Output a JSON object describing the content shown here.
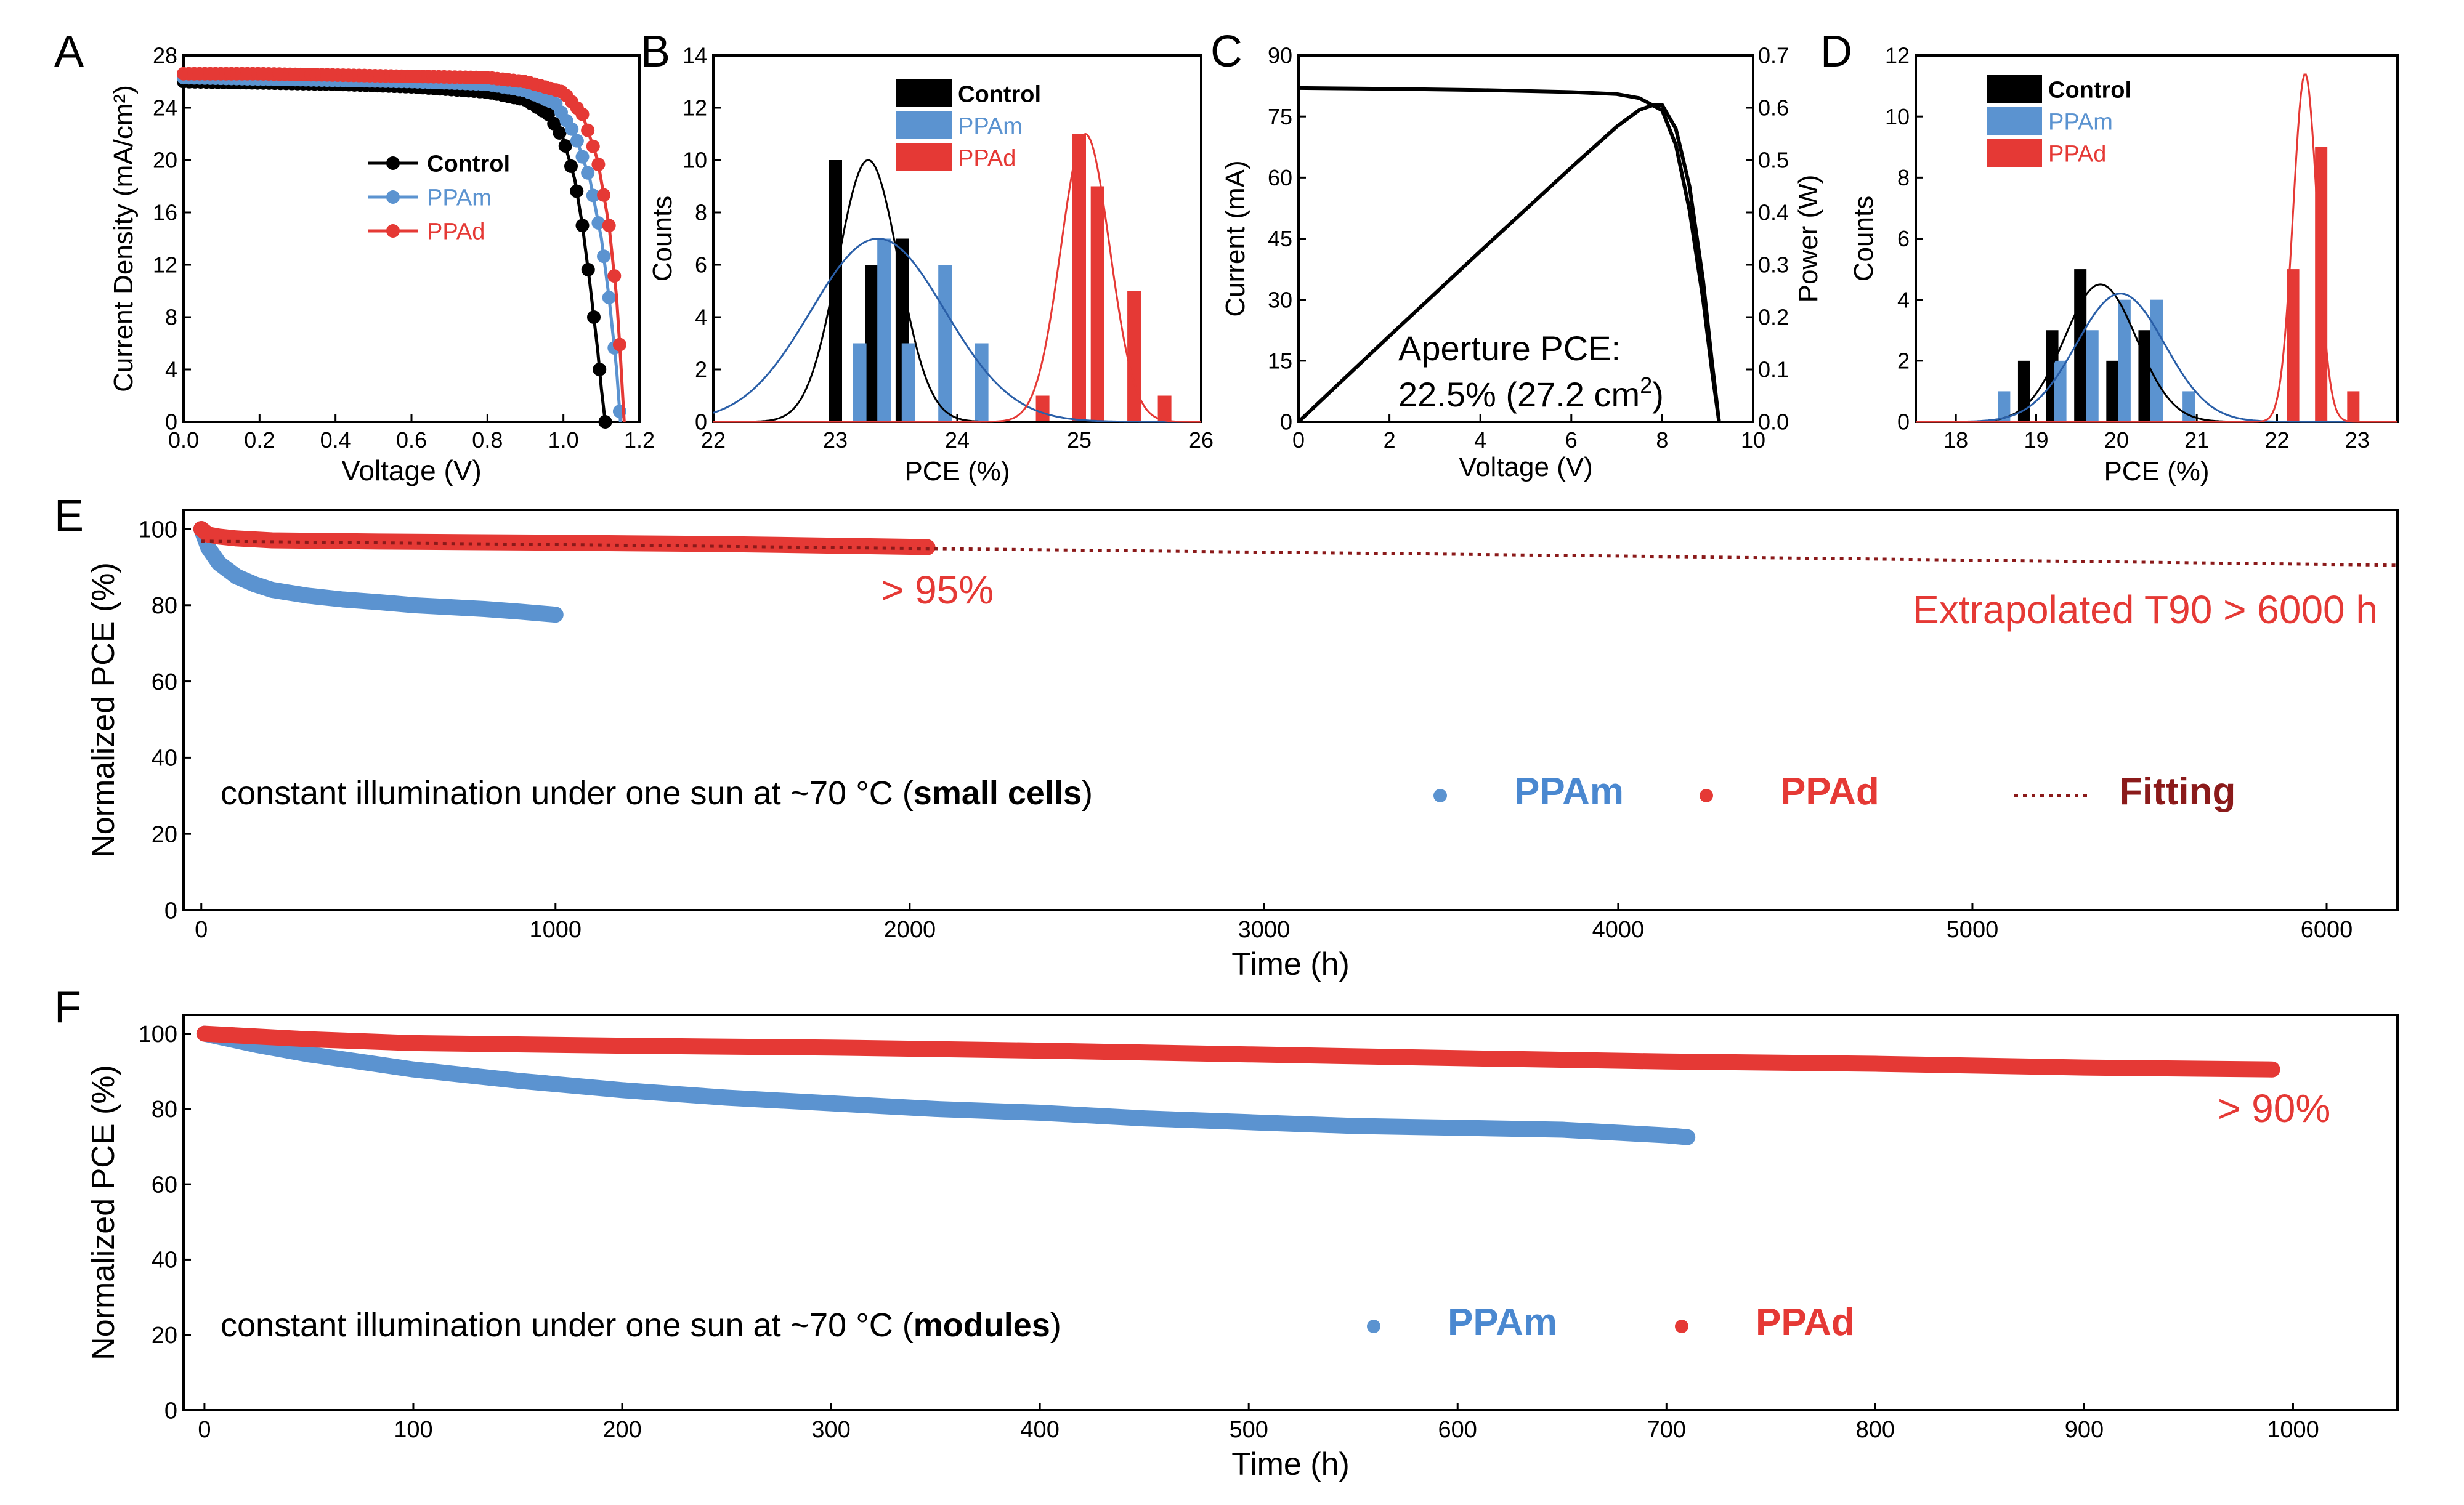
{
  "panel_letters": {
    "a": "A",
    "b": "B",
    "c": "C",
    "d": "D",
    "e": "E",
    "f": "F"
  },
  "colors": {
    "control": "#000000",
    "ppam": "#5b93d0",
    "ppad": "#e53935",
    "fitting": "#8b1a1a",
    "ppam_text": "#4a88d0",
    "ppad_text": "#e53935"
  },
  "chart_data": [
    {
      "id": "A",
      "type": "line",
      "xlabel": "Voltage (V)",
      "ylabel": "Current Density (mA/cm²)",
      "xlim": [
        0.0,
        1.2
      ],
      "ylim": [
        0,
        28
      ],
      "xticks": [
        "0.0",
        "0.2",
        "0.4",
        "0.6",
        "0.8",
        "1.0",
        "1.2"
      ],
      "yticks": [
        "0",
        "4",
        "8",
        "12",
        "16",
        "20",
        "24",
        "28"
      ],
      "legend": [
        "Control",
        "PPAm",
        "PPAd"
      ],
      "series": [
        {
          "name": "Control",
          "jsc": 26.0,
          "voc": 1.11,
          "x": [
            0,
            0.2,
            0.4,
            0.6,
            0.8,
            0.9,
            0.96,
            1.0,
            1.03,
            1.05,
            1.07,
            1.09,
            1.1,
            1.11
          ],
          "y": [
            26.0,
            25.9,
            25.8,
            25.6,
            25.2,
            24.6,
            23.5,
            21.6,
            18.5,
            15,
            10.5,
            5.5,
            2.5,
            0
          ]
        },
        {
          "name": "PPAm",
          "jsc": 26.3,
          "voc": 1.15,
          "x": [
            0,
            0.2,
            0.4,
            0.6,
            0.8,
            0.9,
            0.98,
            1.03,
            1.07,
            1.1,
            1.12,
            1.14,
            1.15
          ],
          "y": [
            26.3,
            26.2,
            26.1,
            26.0,
            25.8,
            25.3,
            24.3,
            22.0,
            18.5,
            14,
            9.5,
            4,
            0
          ]
        },
        {
          "name": "PPAd",
          "jsc": 26.6,
          "voc": 1.16,
          "x": [
            0,
            0.2,
            0.4,
            0.6,
            0.8,
            0.9,
            1.0,
            1.05,
            1.09,
            1.12,
            1.14,
            1.15,
            1.16
          ],
          "y": [
            26.6,
            26.6,
            26.5,
            26.4,
            26.3,
            26.0,
            25.2,
            23.5,
            20.0,
            15.0,
            9.5,
            5.0,
            0
          ]
        }
      ]
    },
    {
      "id": "B",
      "type": "bar",
      "xlabel": "PCE (%)",
      "ylabel": "Counts",
      "xlim": [
        22,
        26
      ],
      "ylim": [
        0,
        14
      ],
      "xticks": [
        "22",
        "23",
        "24",
        "25",
        "26"
      ],
      "yticks": [
        "0",
        "2",
        "4",
        "6",
        "8",
        "10",
        "12",
        "14"
      ],
      "legend": [
        "Control",
        "PPAm",
        "PPAd"
      ],
      "series": [
        {
          "name": "Control",
          "x": [
            23.0,
            23.3,
            23.55
          ],
          "values": [
            10,
            6,
            7
          ]
        },
        {
          "name": "PPAm",
          "x": [
            23.2,
            23.4,
            23.6,
            23.9,
            24.2
          ],
          "values": [
            3,
            7,
            3,
            6,
            3
          ]
        },
        {
          "name": "PPAd",
          "x": [
            24.7,
            25.0,
            25.15,
            25.45,
            25.7
          ],
          "values": [
            1,
            11,
            9,
            5,
            1
          ]
        }
      ],
      "fits": [
        {
          "name": "Control",
          "mean": 23.27,
          "sd": 0.25,
          "peak": 10
        },
        {
          "name": "PPAm",
          "mean": 23.35,
          "sd": 0.55,
          "peak": 7
        },
        {
          "name": "PPAd",
          "mean": 25.05,
          "sd": 0.2,
          "peak": 11
        }
      ]
    },
    {
      "id": "C",
      "type": "line",
      "xlabel": "Voltage (V)",
      "ylabel": "Current (mA)",
      "y2label": "Power (W)",
      "xlim": [
        0,
        10
      ],
      "ylim": [
        0,
        90
      ],
      "y2lim": [
        0,
        0.7
      ],
      "xticks": [
        "0",
        "2",
        "4",
        "6",
        "8",
        "10"
      ],
      "yticks": [
        "0",
        "15",
        "30",
        "45",
        "60",
        "75",
        "90"
      ],
      "y2ticks": [
        "0.0",
        "0.1",
        "0.2",
        "0.3",
        "0.4",
        "0.5",
        "0.6",
        "0.7"
      ],
      "annotation_line1": "Aperture PCE:",
      "annotation_line2_value": "22.5% (27.2 cm",
      "annotation_sup": "2",
      "annotation_close": ")",
      "series": [
        {
          "name": "Current",
          "x": [
            0,
            2,
            4,
            6,
            7,
            7.5,
            8,
            8.3,
            8.6,
            8.9,
            9.1,
            9.25
          ],
          "y": [
            82,
            81.8,
            81.5,
            81,
            80.5,
            79.5,
            76.5,
            68,
            52,
            30,
            12,
            0
          ]
        },
        {
          "name": "Power",
          "x": [
            0,
            2,
            4,
            6,
            7,
            7.5,
            7.8,
            8.0,
            8.3,
            8.6,
            8.9,
            9.1,
            9.25
          ],
          "y": [
            0,
            0.164,
            0.326,
            0.486,
            0.564,
            0.596,
            0.605,
            0.605,
            0.56,
            0.45,
            0.27,
            0.11,
            0
          ]
        }
      ]
    },
    {
      "id": "D",
      "type": "bar",
      "xlabel": "PCE (%)",
      "ylabel": "Counts",
      "xlim": [
        17.5,
        23.5
      ],
      "ylim": [
        0,
        12
      ],
      "xticks": [
        "18",
        "19",
        "20",
        "21",
        "22",
        "23"
      ],
      "yticks": [
        "0",
        "2",
        "4",
        "6",
        "8",
        "10",
        "12"
      ],
      "legend": [
        "Control",
        "PPAm",
        "PPAd"
      ],
      "series": [
        {
          "name": "Control",
          "x": [
            18.85,
            19.2,
            19.55,
            19.95,
            20.35
          ],
          "values": [
            2,
            3,
            5,
            2,
            3
          ]
        },
        {
          "name": "PPAm",
          "x": [
            18.6,
            19.3,
            19.7,
            20.1,
            20.5,
            20.9
          ],
          "values": [
            1,
            2,
            3,
            4,
            4,
            1
          ]
        },
        {
          "name": "PPAd",
          "x": [
            22.2,
            22.55,
            22.95
          ],
          "values": [
            5,
            9,
            1
          ]
        }
      ],
      "fits": [
        {
          "name": "Control",
          "mean": 19.8,
          "sd": 0.45,
          "peak": 4.5
        },
        {
          "name": "PPAm",
          "mean": 20.05,
          "sd": 0.55,
          "peak": 4.2
        },
        {
          "name": "PPAd",
          "mean": 22.35,
          "sd": 0.15,
          "peak": 11.4
        }
      ]
    },
    {
      "id": "E",
      "type": "scatter",
      "xlabel": "Time (h)",
      "ylabel": "Normalized PCE (%)",
      "xlim": [
        -50,
        6200
      ],
      "ylim": [
        0,
        105
      ],
      "xticks": [
        "0",
        "1000",
        "2000",
        "3000",
        "4000",
        "5000",
        "6000"
      ],
      "yticks": [
        "0",
        "20",
        "40",
        "60",
        "80",
        "100"
      ],
      "caption_prefix": "constant illumination under one sun at ~70 °C (",
      "caption_bold": "small cells",
      "caption_suffix": ")",
      "annotation_95": "> 95%",
      "annotation_t90": "Extrapolated T90 > 6000 h",
      "legend": [
        "PPAm",
        "PPAd",
        "Fitting"
      ],
      "series": [
        {
          "name": "PPAm",
          "x": [
            0,
            20,
            50,
            100,
            150,
            200,
            300,
            400,
            500,
            600,
            700,
            800,
            900,
            1000
          ],
          "y": [
            100,
            95,
            91,
            87.5,
            85.5,
            84,
            82.5,
            81.5,
            80.8,
            80,
            79.5,
            79,
            78.3,
            77.5
          ]
        },
        {
          "name": "PPAd",
          "x": [
            0,
            20,
            50,
            100,
            200,
            500,
            1000,
            1500,
            2000,
            2050
          ],
          "y": [
            100,
            98.5,
            98,
            97.5,
            97,
            96.7,
            96.4,
            96.0,
            95.3,
            95.2
          ]
        },
        {
          "name": "Fitting",
          "x": [
            0,
            1000,
            2000,
            3000,
            4000,
            5000,
            6000,
            6200
          ],
          "y": [
            96.8,
            95.9,
            94.9,
            93.9,
            92.9,
            91.8,
            90.7,
            90.5
          ]
        }
      ]
    },
    {
      "id": "F",
      "type": "scatter",
      "xlabel": "Time (h)",
      "ylabel": "Normalized PCE (%)",
      "xlim": [
        -10,
        1050
      ],
      "ylim": [
        0,
        105
      ],
      "xticks": [
        "0",
        "100",
        "200",
        "300",
        "400",
        "500",
        "600",
        "700",
        "800",
        "900",
        "1000"
      ],
      "yticks": [
        "0",
        "20",
        "40",
        "60",
        "80",
        "100"
      ],
      "caption_prefix": "constant illumination under one sun at ~70 °C (",
      "caption_bold": "modules",
      "caption_suffix": ")",
      "annotation_90": "> 90%",
      "legend": [
        "PPAm",
        "PPAd"
      ],
      "series": [
        {
          "name": "PPAm",
          "x": [
            0,
            25,
            50,
            100,
            150,
            200,
            250,
            300,
            350,
            400,
            450,
            500,
            550,
            600,
            650,
            700,
            710
          ],
          "y": [
            100,
            97,
            94.5,
            90.5,
            87.5,
            85,
            83,
            81.5,
            80,
            79,
            77.5,
            76.5,
            75.5,
            75,
            74.5,
            73,
            72.5
          ]
        },
        {
          "name": "PPAd",
          "x": [
            0,
            50,
            100,
            200,
            300,
            400,
            500,
            600,
            700,
            800,
            900,
            990
          ],
          "y": [
            100,
            98.5,
            97.5,
            96.8,
            96.3,
            95.5,
            94.5,
            93.5,
            92.6,
            92,
            91,
            90.5
          ]
        }
      ]
    }
  ]
}
